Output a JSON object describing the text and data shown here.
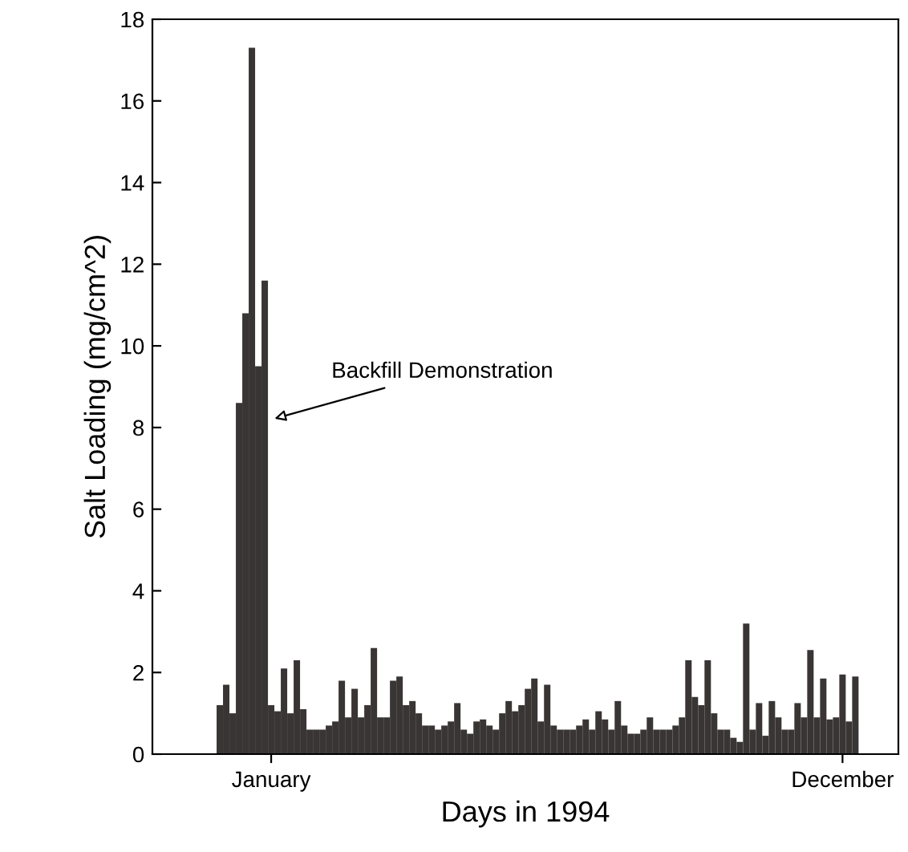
{
  "chart_data": {
    "type": "bar",
    "xlabel": "Days in 1994",
    "ylabel": "Salt Loading (mg/cm^2)",
    "categories": [
      null,
      null,
      null,
      null,
      null,
      null,
      null,
      null,
      "January",
      null,
      null,
      null,
      null,
      null,
      null,
      null,
      null,
      null,
      null,
      null,
      null,
      null,
      null,
      null,
      null,
      null,
      null,
      null,
      null,
      null,
      null,
      null,
      null,
      null,
      null,
      null,
      null,
      null,
      null,
      null,
      null,
      null,
      null,
      null,
      null,
      null,
      null,
      null,
      null,
      null,
      null,
      null,
      null,
      null,
      null,
      null,
      null,
      null,
      null,
      null,
      null,
      null,
      null,
      null,
      null,
      null,
      null,
      null,
      null,
      null,
      null,
      null,
      null,
      null,
      null,
      null,
      null,
      null,
      null,
      null,
      null,
      null,
      null,
      null,
      null,
      null,
      null,
      null,
      null,
      null,
      null,
      null,
      null,
      null,
      null,
      null,
      null,
      "December",
      null,
      null
    ],
    "values": [
      1.2,
      1.7,
      1.0,
      8.6,
      10.8,
      17.3,
      9.5,
      11.6,
      1.2,
      1.05,
      2.1,
      1.0,
      2.3,
      1.1,
      0.6,
      0.6,
      0.6,
      0.7,
      0.8,
      1.8,
      0.9,
      1.6,
      0.9,
      1.2,
      2.6,
      0.9,
      0.9,
      1.8,
      1.9,
      1.2,
      1.3,
      1.0,
      0.7,
      0.7,
      0.6,
      0.7,
      0.8,
      1.25,
      0.6,
      0.5,
      0.8,
      0.85,
      0.7,
      0.6,
      1.0,
      1.3,
      1.05,
      1.2,
      1.6,
      1.85,
      0.8,
      1.7,
      0.7,
      0.6,
      0.6,
      0.6,
      0.7,
      0.85,
      0.6,
      1.05,
      0.85,
      0.6,
      1.3,
      0.7,
      0.5,
      0.5,
      0.6,
      0.9,
      0.6,
      0.6,
      0.6,
      0.7,
      0.9,
      2.3,
      1.4,
      1.2,
      2.3,
      1.0,
      0.6,
      0.6,
      0.4,
      0.3,
      3.2,
      0.6,
      1.25,
      0.45,
      1.3,
      0.9,
      0.6,
      0.6,
      1.25,
      0.9,
      2.55,
      0.9,
      1.85,
      0.85,
      0.9,
      1.95,
      0.8,
      1.9
    ],
    "color": "#3a3535",
    "ylim": [
      0,
      18
    ],
    "yticks": [
      0,
      2,
      4,
      6,
      8,
      10,
      12,
      14,
      16,
      18
    ],
    "grid": false,
    "legend": false,
    "annotations": [
      "Backfill Demonstration"
    ]
  }
}
